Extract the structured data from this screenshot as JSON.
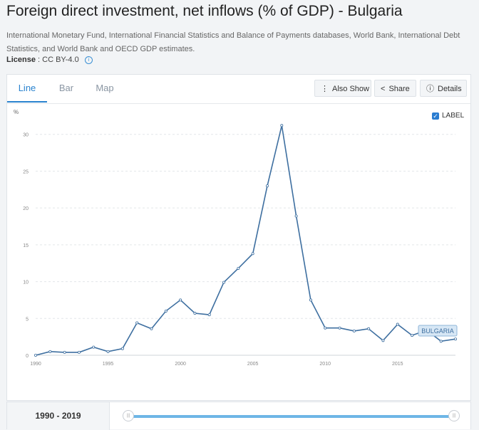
{
  "header": {
    "title": "Foreign direct investment, net inflows (% of GDP) - Bulgaria",
    "source": "International Monetary Fund, International Financial Statistics and Balance of Payments databases, World Bank, International Debt Statistics, and World Bank and OECD GDP estimates.",
    "license_label": "License",
    "license_value": ": CC BY-4.0"
  },
  "tabs": [
    {
      "label": "Line",
      "active": true
    },
    {
      "label": "Bar",
      "active": false
    },
    {
      "label": "Map",
      "active": false
    }
  ],
  "toolbar": {
    "also_show": "Also Show",
    "share": "Share",
    "details": "Details"
  },
  "label_toggle": {
    "text": "LABEL",
    "checked": true
  },
  "colors": {
    "line": "#3e6fa0",
    "accent": "#2a83cf",
    "slider": "#6eb6e6"
  },
  "chart_data": {
    "type": "line",
    "ylabel": "%",
    "ylim": [
      0,
      32
    ],
    "y_ticks": [
      0,
      5,
      10,
      15,
      20,
      25,
      30
    ],
    "x_ticks": [
      1990,
      1995,
      2000,
      2005,
      2010,
      2015
    ],
    "xlim": [
      1990,
      2019
    ],
    "grid": true,
    "series": [
      {
        "name": "BULGARIA",
        "x": [
          1990,
          1991,
          1992,
          1993,
          1994,
          1995,
          1996,
          1997,
          1998,
          1999,
          2000,
          2001,
          2002,
          2003,
          2004,
          2005,
          2006,
          2007,
          2008,
          2009,
          2010,
          2011,
          2012,
          2013,
          2014,
          2015,
          2016,
          2017,
          2018,
          2019
        ],
        "values": [
          0.0,
          0.5,
          0.4,
          0.4,
          1.1,
          0.5,
          0.9,
          4.4,
          3.6,
          6.0,
          7.5,
          5.7,
          5.5,
          9.9,
          11.8,
          13.8,
          23.0,
          31.2,
          18.9,
          7.5,
          3.7,
          3.7,
          3.3,
          3.6,
          2.0,
          4.2,
          2.7,
          3.4,
          1.9,
          2.2
        ]
      }
    ]
  },
  "range": {
    "label": "1990 - 2019"
  }
}
